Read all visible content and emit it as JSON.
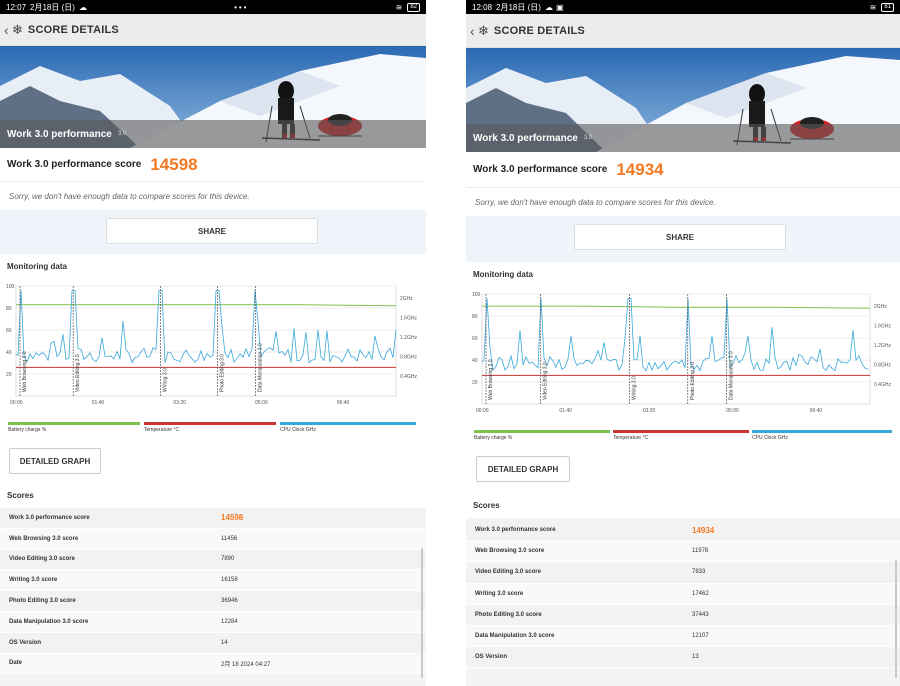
{
  "left": {
    "status": {
      "time": "12:07",
      "date": "2月18日 (日)",
      "dots": "•••",
      "battery": "82"
    },
    "appbar_title": "SCORE DETAILS",
    "hero": {
      "title": "Work 3.0 performance",
      "version": "3.0"
    },
    "score": {
      "label": "Work 3.0 performance score",
      "value": "14598"
    },
    "sorry": "Sorry, we don't have enough data to compare scores for this device.",
    "share_label": "SHARE",
    "monitoring_title": "Monitoring data",
    "detail_label": "DETAILED GRAPH",
    "scores_title": "Scores",
    "rows": [
      {
        "k": "Work 3.0 performance score",
        "v": "14598"
      },
      {
        "k": "Web Browsing 3.0 score",
        "v": "11456"
      },
      {
        "k": "Video Editing 3.0 score",
        "v": "7890"
      },
      {
        "k": "Writing 3.0 score",
        "v": "16158"
      },
      {
        "k": "Photo Editing 3.0 score",
        "v": "36946"
      },
      {
        "k": "Data Manipulation 3.0 score",
        "v": "12284"
      },
      {
        "k": "OS Version",
        "v": "14"
      },
      {
        "k": "Date",
        "v": "2月 18 2024 04:27"
      }
    ],
    "chart_data": {
      "type": "line",
      "y_left_ticks": [
        "100",
        "80",
        "60",
        "40",
        "20"
      ],
      "y_right_ticks": [
        "2GHz",
        "1.6GHz",
        "1.2GHz",
        "0.8GHz",
        "0.4GHz"
      ],
      "x_ticks": [
        "00:00",
        "01:40",
        "03:20",
        "05:00",
        "06:40"
      ],
      "markers": [
        {
          "label": "Web Browsing 3.0",
          "t": 0
        },
        {
          "label": "Video Editing 3.0",
          "t": 0.14
        },
        {
          "label": "Writing 3.0",
          "t": 0.37
        },
        {
          "label": "Photo Editing 3.0",
          "t": 0.52
        },
        {
          "label": "Data Manipulation 3.0",
          "t": 0.62
        }
      ],
      "legend": [
        "Battery charge %",
        "Temperature °C",
        "CPU Clock GHz"
      ],
      "colors": {
        "battery": "#7cc24a",
        "temperature": "#cc3333",
        "cpu": "#3aa8d8"
      },
      "battery_series": [
        83,
        83,
        83,
        83,
        82
      ],
      "temperature_series": [
        26,
        26,
        26,
        26,
        26
      ]
    }
  },
  "right": {
    "status": {
      "time": "12:08",
      "date": "2月18日 (日)",
      "dots": "",
      "battery": "81"
    },
    "appbar_title": "SCORE DETAILS",
    "hero": {
      "title": "Work 3.0 performance",
      "version": "3.0"
    },
    "score": {
      "label": "Work 3.0 performance score",
      "value": "14934"
    },
    "sorry": "Sorry, we don't have enough data to compare scores for this device.",
    "share_label": "SHARE",
    "monitoring_title": "Monitoring data",
    "detail_label": "DETAILED GRAPH",
    "scores_title": "Scores",
    "rows": [
      {
        "k": "Work 3.0 performance score",
        "v": "14934"
      },
      {
        "k": "Web Browsing 3.0 score",
        "v": "11978"
      },
      {
        "k": "Video Editing 3.0 score",
        "v": "7833"
      },
      {
        "k": "Writing 3.0 score",
        "v": "17462"
      },
      {
        "k": "Photo Editing 3.0 score",
        "v": "37443"
      },
      {
        "k": "Data Manipulation 3.0 score",
        "v": "12107"
      },
      {
        "k": "OS Version",
        "v": "13"
      }
    ],
    "chart_data": {
      "type": "line",
      "y_left_ticks": [
        "100",
        "80",
        "60",
        "40",
        "20"
      ],
      "y_right_ticks": [
        "2GHz",
        "1.6GHz",
        "1.2GHz",
        "0.8GHz",
        "0.4GHz"
      ],
      "x_ticks": [
        "00:00",
        "01:40",
        "03:20",
        "05:00",
        "06:40"
      ],
      "markers": [
        {
          "label": "Web Browsing 3.0",
          "t": 0
        },
        {
          "label": "Video Editing 3.0",
          "t": 0.14
        },
        {
          "label": "Writing 3.0",
          "t": 0.37
        },
        {
          "label": "Photo Editing 3.0",
          "t": 0.52
        },
        {
          "label": "Data Manipulation 3.0",
          "t": 0.62
        }
      ],
      "legend": [
        "Battery charge %",
        "Temperature °C",
        "CPU Clock GHz"
      ],
      "colors": {
        "battery": "#7cc24a",
        "temperature": "#cc3333",
        "cpu": "#3aa8d8"
      },
      "battery_series": [
        89,
        89,
        88,
        88,
        87
      ],
      "temperature_series": [
        26,
        26,
        26,
        26,
        26
      ]
    }
  }
}
